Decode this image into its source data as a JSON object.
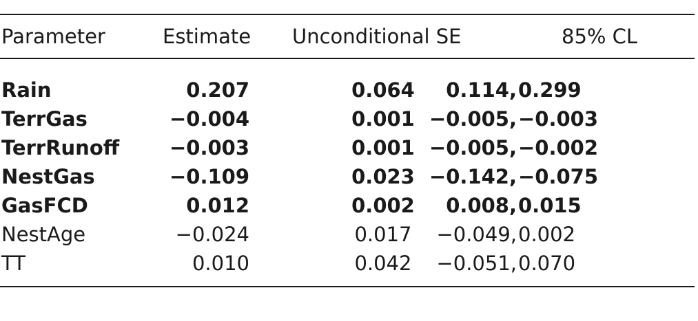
{
  "table": {
    "headers": {
      "parameter": "Parameter",
      "estimate": "Estimate",
      "se": "Unconditional SE",
      "cl": "85% CL"
    },
    "rows": [
      {
        "parameter": "Rain",
        "estimate": "0.207",
        "se": "0.064",
        "cl_low": "0.114,",
        "cl_high": "0.299",
        "bold": true
      },
      {
        "parameter": "TerrGas",
        "estimate": "−0.004",
        "se": "0.001",
        "cl_low": "−0.005,",
        "cl_high": "−0.003",
        "bold": true
      },
      {
        "parameter": "TerrRunoff",
        "estimate": "−0.003",
        "se": "0.001",
        "cl_low": "−0.005,",
        "cl_high": "−0.002",
        "bold": true
      },
      {
        "parameter": "NestGas",
        "estimate": "−0.109",
        "se": "0.023",
        "cl_low": "−0.142,",
        "cl_high": "−0.075",
        "bold": true
      },
      {
        "parameter": "GasFCD",
        "estimate": "0.012",
        "se": "0.002",
        "cl_low": "0.008,",
        "cl_high": "0.015",
        "bold": true
      },
      {
        "parameter": "NestAge",
        "estimate": "−0.024",
        "se": "0.017",
        "cl_low": "−0.049,",
        "cl_high": "0.002",
        "bold": false
      },
      {
        "parameter": "TT",
        "estimate": "0.010",
        "se": "0.042",
        "cl_low": "−0.051,",
        "cl_high": "0.070",
        "bold": false
      }
    ]
  }
}
